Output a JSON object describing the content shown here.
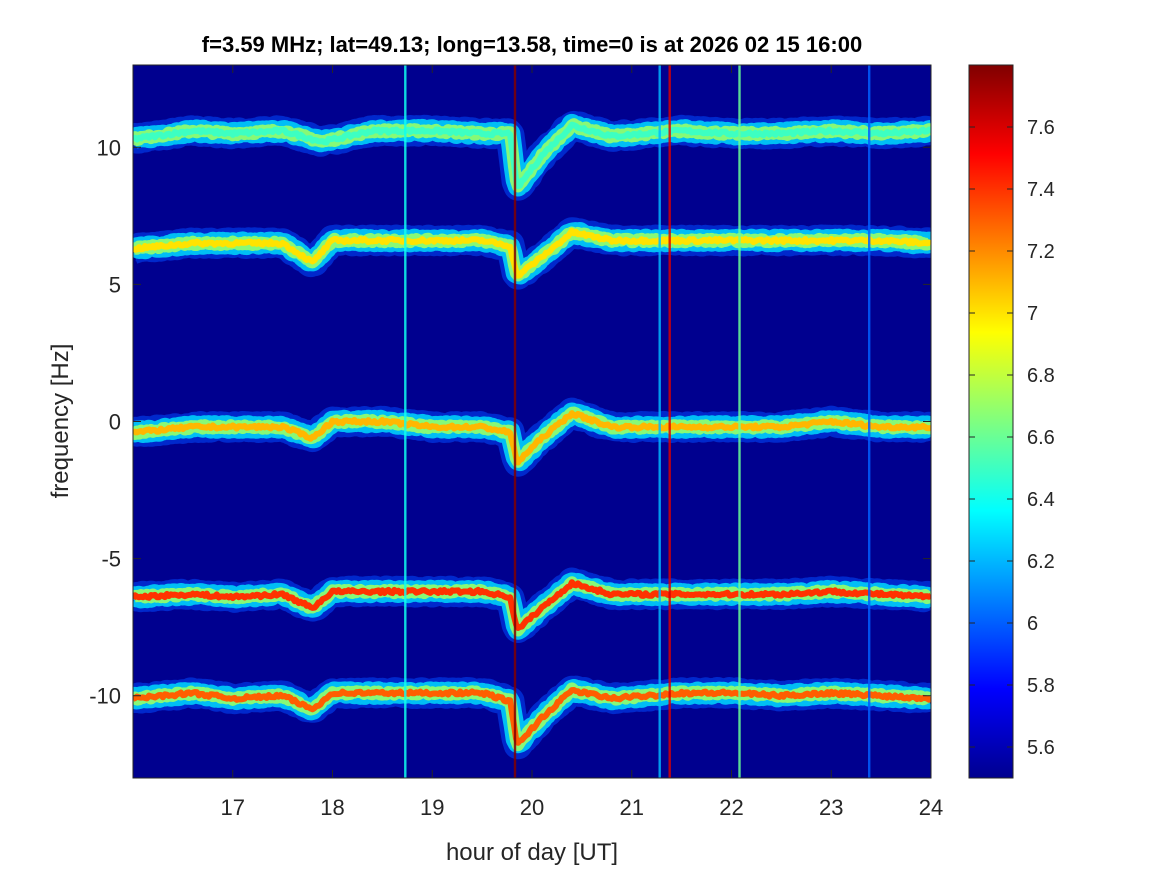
{
  "chart_data": {
    "type": "heatmap",
    "title": "f=3.59 MHz;  lat=49.13; long=13.58, time=0 is at 2026 02 15 16:00",
    "xlabel": "hour of day [UT]",
    "ylabel": "frequency [Hz]",
    "xlim": [
      16,
      24
    ],
    "ylim": [
      -13,
      13
    ],
    "x_ticks": [
      17,
      18,
      19,
      20,
      21,
      22,
      23,
      24
    ],
    "y_ticks": [
      10,
      5,
      0,
      -5,
      -10
    ],
    "colorbar": {
      "range": [
        5.5,
        7.8
      ],
      "ticks": [
        "7.6",
        "7.4",
        "7.2",
        "7",
        "6.8",
        "6.6",
        "6.4",
        "6.2",
        "6",
        "5.8",
        "5.6"
      ],
      "colormap": "jet"
    },
    "background_value": 5.55,
    "traces": [
      {
        "offset": 10.5,
        "intensity": 6.5,
        "knots": [
          [
            16,
            10.3
          ],
          [
            16.6,
            10.6
          ],
          [
            17,
            10.5
          ],
          [
            17.5,
            10.6
          ],
          [
            17.9,
            10.2
          ],
          [
            18.4,
            10.6
          ],
          [
            19,
            10.6
          ],
          [
            19.5,
            10.5
          ],
          [
            19.78,
            10.5
          ],
          [
            19.85,
            8.5
          ],
          [
            20.1,
            9.7
          ],
          [
            20.4,
            10.8
          ],
          [
            20.8,
            10.4
          ],
          [
            21.5,
            10.6
          ],
          [
            22,
            10.5
          ],
          [
            22.5,
            10.5
          ],
          [
            23,
            10.6
          ],
          [
            23.5,
            10.5
          ],
          [
            24,
            10.6
          ]
        ]
      },
      {
        "offset": 6.4,
        "intensity": 7.0,
        "knots": [
          [
            16,
            6.3
          ],
          [
            16.6,
            6.5
          ],
          [
            17,
            6.5
          ],
          [
            17.5,
            6.5
          ],
          [
            17.8,
            5.8
          ],
          [
            18,
            6.6
          ],
          [
            18.5,
            6.6
          ],
          [
            19,
            6.6
          ],
          [
            19.5,
            6.6
          ],
          [
            19.78,
            6.4
          ],
          [
            19.85,
            5.3
          ],
          [
            20.1,
            6.0
          ],
          [
            20.4,
            6.9
          ],
          [
            20.8,
            6.6
          ],
          [
            21.5,
            6.6
          ],
          [
            22,
            6.6
          ],
          [
            22.5,
            6.6
          ],
          [
            23,
            6.6
          ],
          [
            23.5,
            6.6
          ],
          [
            24,
            6.5
          ]
        ]
      },
      {
        "offset": 0,
        "intensity": 7.1,
        "knots": [
          [
            16,
            -0.4
          ],
          [
            16.6,
            -0.2
          ],
          [
            17,
            -0.2
          ],
          [
            17.5,
            -0.2
          ],
          [
            17.8,
            -0.6
          ],
          [
            18,
            0
          ],
          [
            18.5,
            0
          ],
          [
            19,
            -0.2
          ],
          [
            19.5,
            -0.2
          ],
          [
            19.78,
            -0.4
          ],
          [
            19.85,
            -1.5
          ],
          [
            20.1,
            -0.6
          ],
          [
            20.4,
            0.3
          ],
          [
            20.8,
            -0.2
          ],
          [
            21.5,
            -0.2
          ],
          [
            22,
            -0.2
          ],
          [
            22.5,
            -0.2
          ],
          [
            23,
            0
          ],
          [
            23.5,
            -0.2
          ],
          [
            24,
            -0.2
          ]
        ]
      },
      {
        "offset": -6.3,
        "intensity": 7.4,
        "knots": [
          [
            16,
            -6.4
          ],
          [
            16.6,
            -6.3
          ],
          [
            17,
            -6.4
          ],
          [
            17.5,
            -6.3
          ],
          [
            17.8,
            -6.8
          ],
          [
            18,
            -6.2
          ],
          [
            18.5,
            -6.2
          ],
          [
            19,
            -6.2
          ],
          [
            19.5,
            -6.2
          ],
          [
            19.78,
            -6.4
          ],
          [
            19.85,
            -7.6
          ],
          [
            20.1,
            -6.8
          ],
          [
            20.4,
            -5.9
          ],
          [
            20.8,
            -6.3
          ],
          [
            21.5,
            -6.3
          ],
          [
            22,
            -6.3
          ],
          [
            22.5,
            -6.3
          ],
          [
            23,
            -6.2
          ],
          [
            23.5,
            -6.3
          ],
          [
            24,
            -6.4
          ]
        ]
      },
      {
        "offset": -10.0,
        "intensity": 7.3,
        "knots": [
          [
            16,
            -10.1
          ],
          [
            16.6,
            -9.9
          ],
          [
            17,
            -10.1
          ],
          [
            17.5,
            -10
          ],
          [
            17.8,
            -10.5
          ],
          [
            18,
            -9.9
          ],
          [
            18.5,
            -9.9
          ],
          [
            19,
            -9.9
          ],
          [
            19.5,
            -9.9
          ],
          [
            19.78,
            -10.2
          ],
          [
            19.85,
            -11.8
          ],
          [
            20.1,
            -10.8
          ],
          [
            20.4,
            -9.8
          ],
          [
            20.8,
            -10.1
          ],
          [
            21.5,
            -9.9
          ],
          [
            22,
            -9.9
          ],
          [
            22.5,
            -10
          ],
          [
            23,
            -9.9
          ],
          [
            23.5,
            -10
          ],
          [
            24,
            -10.1
          ]
        ]
      }
    ],
    "vertical_streaks": [
      {
        "x": 19.83,
        "intensity": 7.8
      },
      {
        "x": 21.38,
        "intensity": 7.6
      },
      {
        "x": 22.08,
        "intensity": 6.6
      },
      {
        "x": 18.73,
        "intensity": 6.4
      },
      {
        "x": 21.28,
        "intensity": 6.2
      },
      {
        "x": 23.38,
        "intensity": 6.0
      }
    ]
  }
}
